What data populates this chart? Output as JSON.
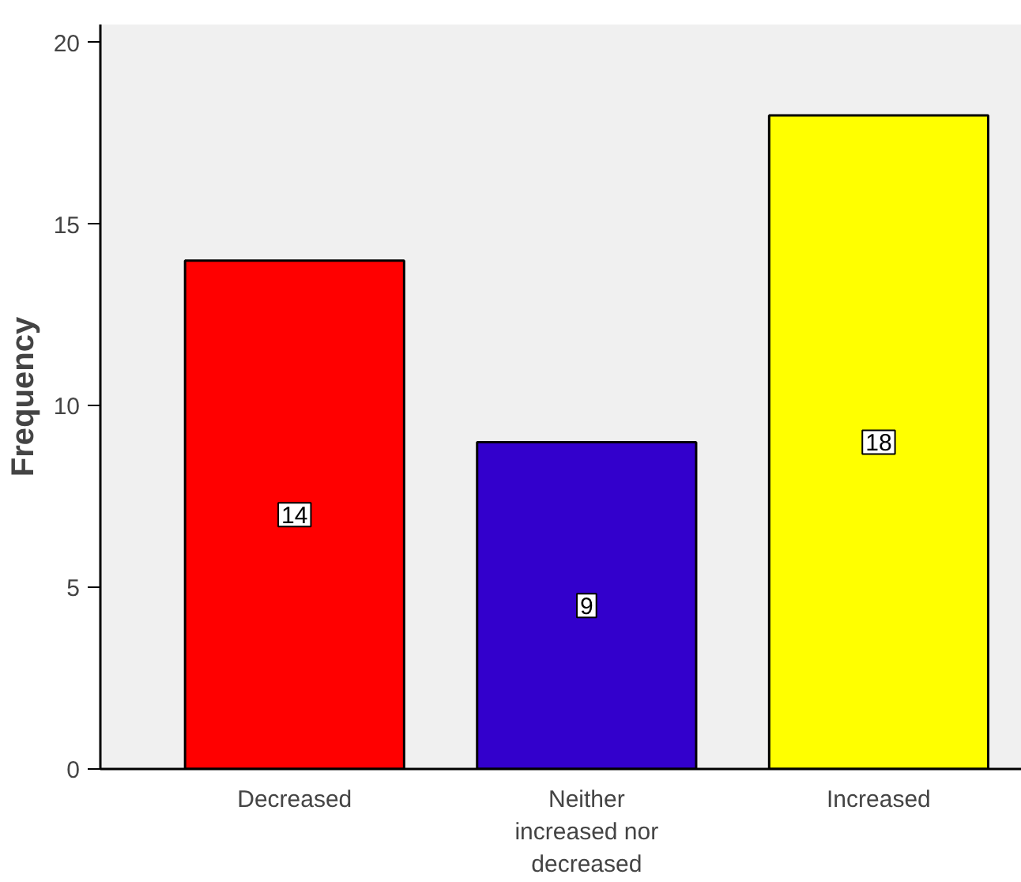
{
  "chart_data": {
    "type": "bar",
    "ylabel": "Frequency",
    "categories": [
      "Decreased",
      "Neither\nincreased nor\ndecreased",
      "Increased"
    ],
    "values": [
      14,
      9,
      18
    ],
    "colors": [
      "#ff0000",
      "#3300cc",
      "#ffff00"
    ],
    "ylim": [
      0,
      20.5
    ],
    "yticks": [
      0,
      5,
      10,
      15,
      20
    ],
    "data_labels": true,
    "grid": false
  }
}
